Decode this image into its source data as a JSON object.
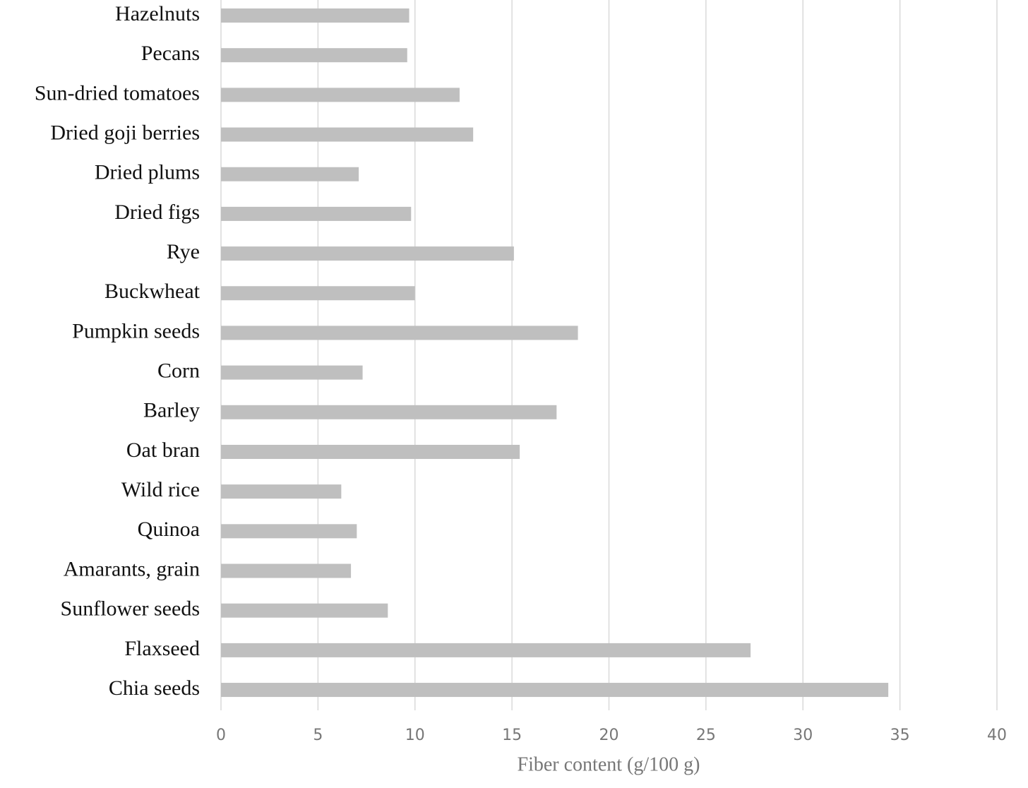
{
  "chart_data": {
    "type": "bar",
    "orientation": "horizontal",
    "x_label": "Fiber content (g/100 g)",
    "categories": [
      "Hazelnuts",
      "Pecans",
      "Sun-dried tomatoes",
      "Dried goji berries",
      "Dried plums",
      "Dried figs",
      "Rye",
      "Buckwheat",
      "Pumpkin seeds",
      "Corn",
      "Barley",
      "Oat bran",
      "Wild rice",
      "Quinoa",
      "Amarants, grain",
      "Sunflower seeds",
      "Flaxseed",
      "Chia seeds"
    ],
    "values": [
      9.7,
      9.6,
      12.3,
      13,
      7.1,
      9.8,
      15.1,
      10,
      18.4,
      7.3,
      17.3,
      15.4,
      6.2,
      7,
      6.7,
      8.6,
      27.3,
      34.4
    ],
    "color": "#bfbfbf",
    "xlim": [
      0,
      40
    ],
    "xticks": [
      0,
      5,
      10,
      15,
      20,
      25,
      30,
      35,
      40
    ],
    "grid": true
  }
}
